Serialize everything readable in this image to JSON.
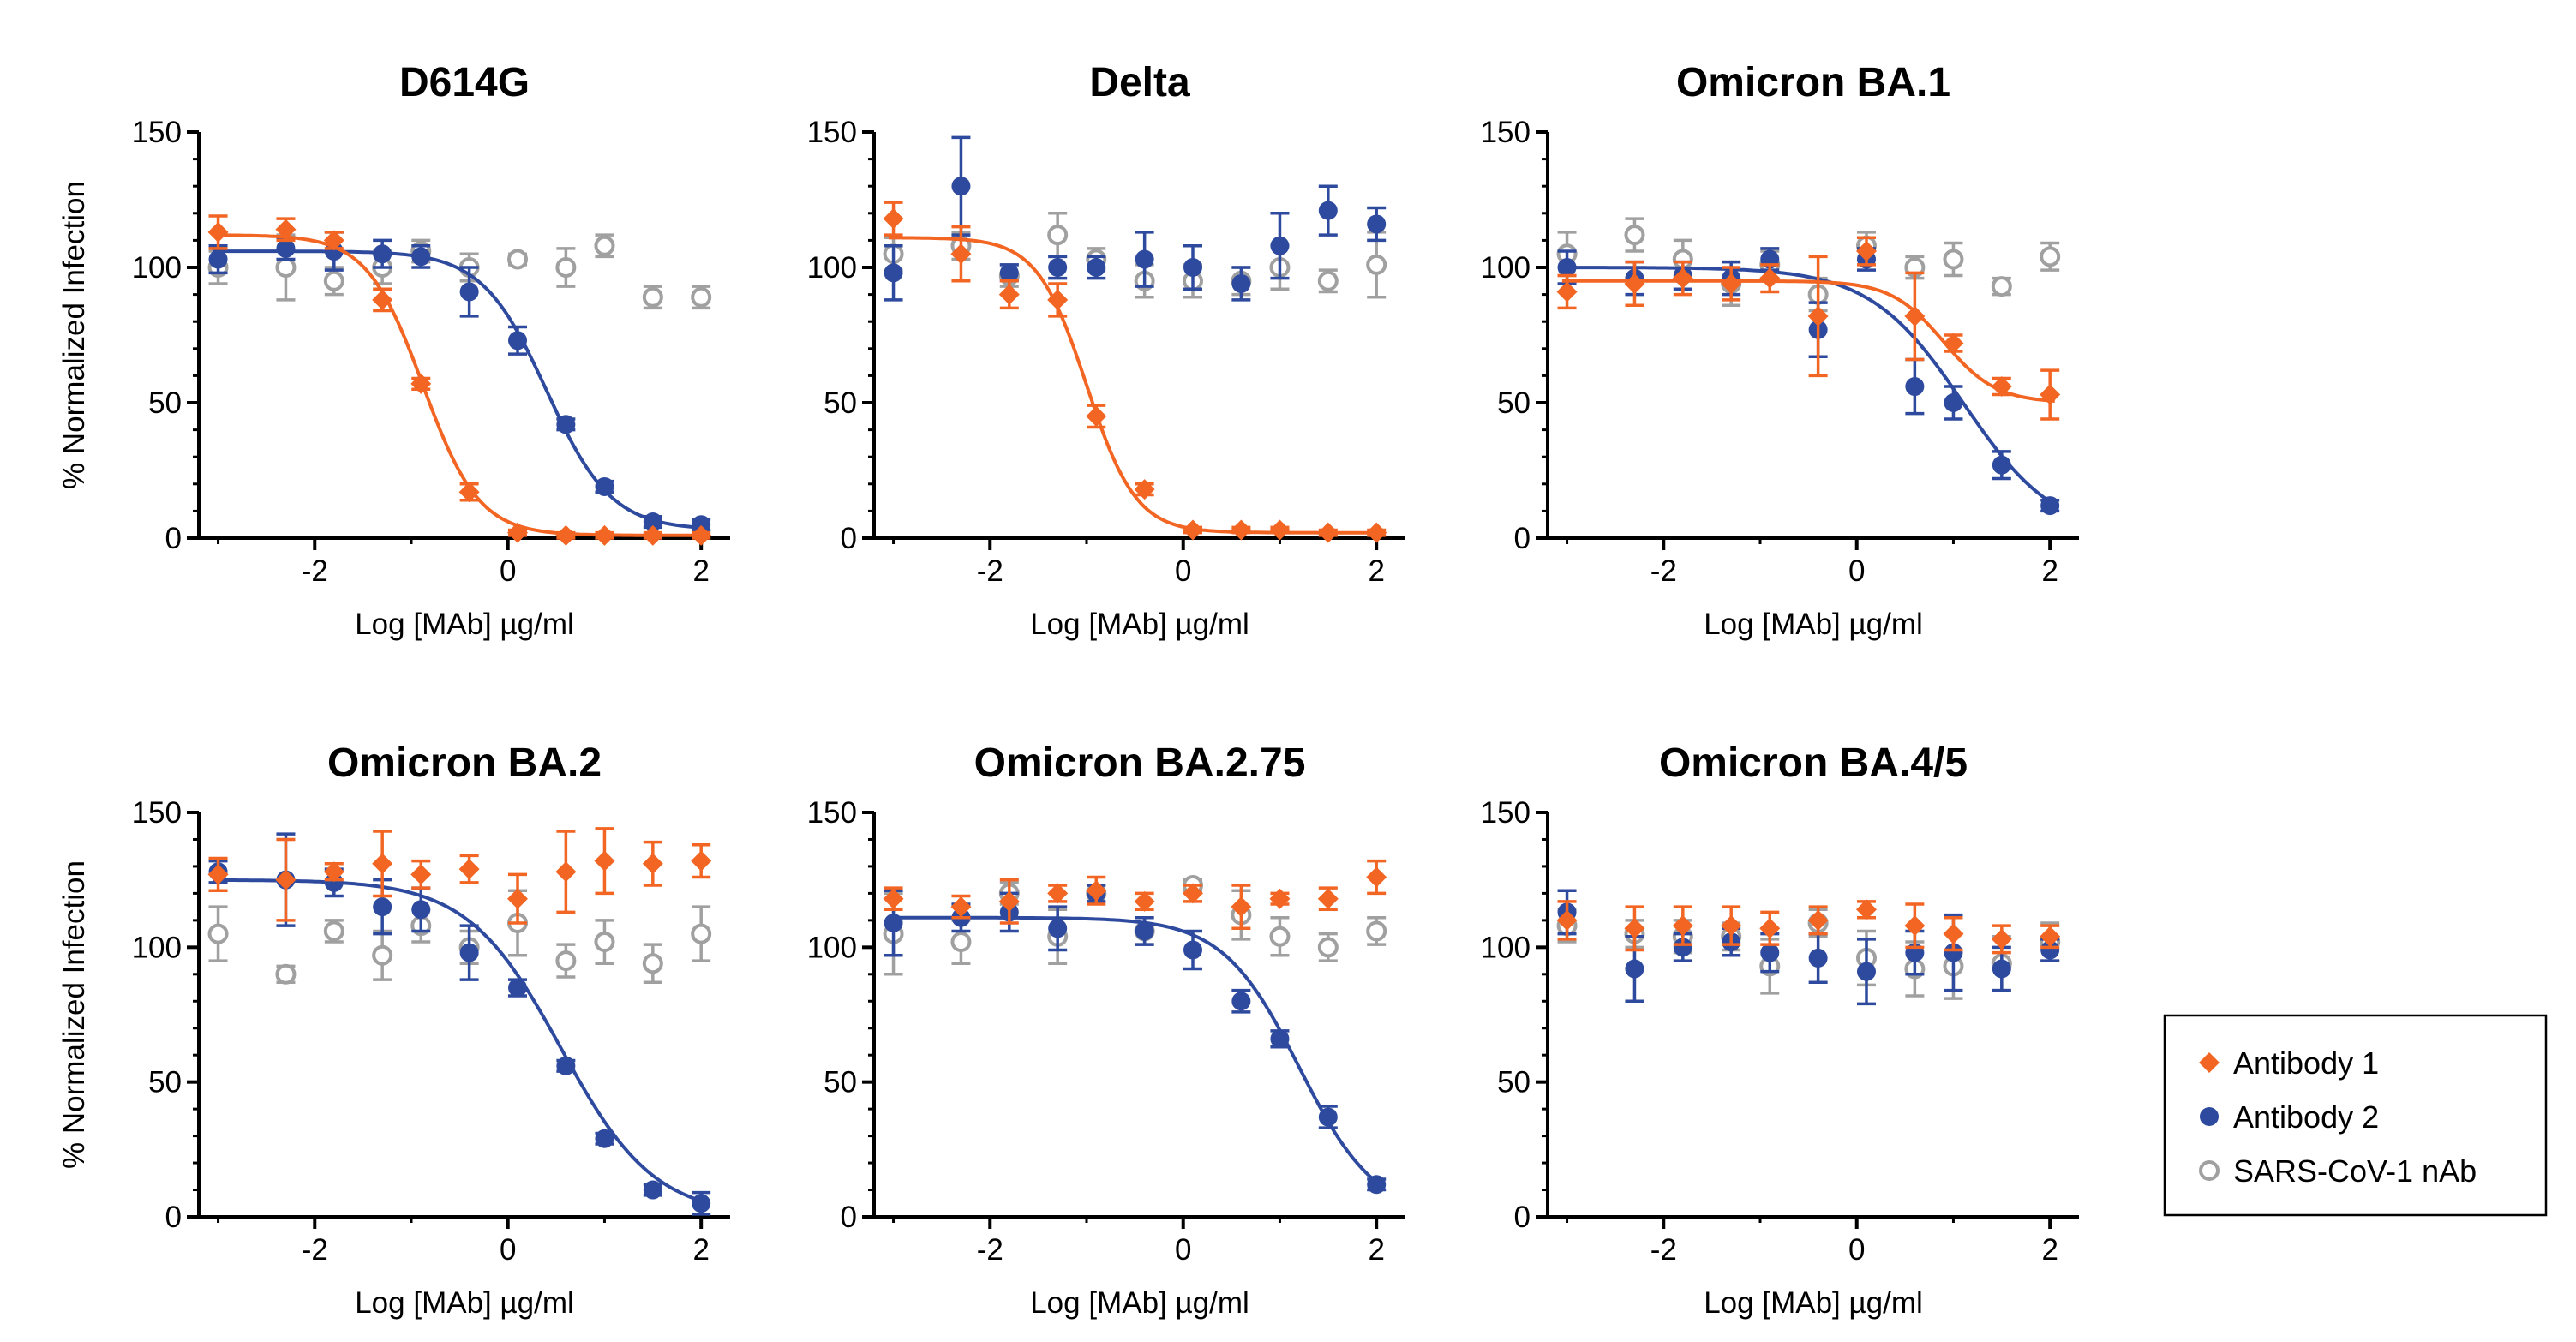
{
  "legend": {
    "entries": [
      {
        "label": "Antibody 1",
        "marker": "diamond",
        "color": "#F26522"
      },
      {
        "label": "Antibody 2",
        "marker": "circle",
        "color": "#2E4A9E"
      },
      {
        "label": "SARS-CoV-1 nAb",
        "marker": "open-circle",
        "color": "#A0A0A0"
      }
    ],
    "placement": "right"
  },
  "chart_data": [
    {
      "type": "scatter",
      "title": "D614G",
      "xlabel": "Log [MAb] µg/ml",
      "ylabel": "% Normalized Infection",
      "xlim": [
        -3.2,
        2.3
      ],
      "ylim": [
        0,
        150
      ],
      "xticks": [
        -2,
        0,
        2
      ],
      "yticks": [
        0,
        50,
        100,
        150
      ],
      "series": [
        {
          "name": "Antibody 1",
          "color": "#F26522",
          "marker": "diamond",
          "x": [
            -3,
            -2.3,
            -1.8,
            -1.3,
            -0.9,
            -0.4,
            0.1,
            0.6,
            1.0,
            1.5,
            2.0
          ],
          "y": [
            113,
            114,
            110,
            88,
            57,
            17,
            2,
            1,
            1,
            1,
            1
          ],
          "err": [
            6,
            4,
            3,
            4,
            2,
            3,
            1,
            1,
            1,
            1,
            1
          ],
          "fit": {
            "top": 112,
            "bottom": 1,
            "logic50": -0.88,
            "hill": 1.5
          }
        },
        {
          "name": "Antibody 2",
          "color": "#2E4A9E",
          "marker": "circle",
          "x": [
            -3,
            -2.3,
            -1.8,
            -1.3,
            -0.9,
            -0.4,
            0.1,
            0.6,
            1.0,
            1.5,
            2.0
          ],
          "y": [
            103,
            107,
            106,
            105,
            104,
            91,
            73,
            42,
            19,
            6,
            5
          ],
          "err": [
            5,
            4,
            7,
            5,
            4,
            9,
            5,
            2,
            2,
            2,
            2
          ],
          "fit": {
            "top": 106,
            "bottom": 3,
            "logic50": 0.4,
            "hill": 1.3
          }
        },
        {
          "name": "SARS-CoV-1 nAb",
          "color": "#A0A0A0",
          "marker": "open-circle",
          "x": [
            -3,
            -2.3,
            -1.8,
            -1.3,
            -0.9,
            -0.4,
            0.1,
            0.6,
            1.0,
            1.5,
            2.0
          ],
          "y": [
            100,
            100,
            95,
            100,
            106,
            100,
            103,
            100,
            108,
            89,
            89
          ],
          "err": [
            6,
            12,
            5,
            6,
            4,
            5,
            2,
            7,
            4,
            4,
            4
          ]
        }
      ]
    },
    {
      "type": "scatter",
      "title": "Delta",
      "xlabel": "Log [MAb] µg/ml",
      "ylabel": "",
      "xlim": [
        -3.2,
        2.3
      ],
      "ylim": [
        0,
        150
      ],
      "xticks": [
        -2,
        0,
        2
      ],
      "yticks": [
        0,
        50,
        100,
        150
      ],
      "series": [
        {
          "name": "Antibody 1",
          "color": "#F26522",
          "marker": "diamond",
          "x": [
            -3,
            -2.3,
            -1.8,
            -1.3,
            -0.9,
            -0.4,
            0.1,
            0.6,
            1.0,
            1.5,
            2.0
          ],
          "y": [
            118,
            105,
            90,
            88,
            45,
            18,
            3,
            3,
            3,
            2,
            2
          ],
          "err": [
            6,
            10,
            5,
            6,
            4,
            2,
            1,
            1,
            1,
            1,
            1
          ],
          "fit": {
            "top": 111,
            "bottom": 2,
            "logic50": -1.0,
            "hill": 1.7
          }
        },
        {
          "name": "Antibody 2",
          "color": "#2E4A9E",
          "marker": "circle",
          "x": [
            -3,
            -2.3,
            -1.8,
            -1.3,
            -0.9,
            -0.4,
            0.1,
            0.6,
            1.0,
            1.5,
            2.0
          ],
          "y": [
            98,
            130,
            98,
            100,
            100,
            103,
            100,
            94,
            108,
            121,
            116
          ],
          "err": [
            10,
            18,
            3,
            4,
            4,
            10,
            8,
            6,
            12,
            9,
            6
          ]
        },
        {
          "name": "SARS-CoV-1 nAb",
          "color": "#A0A0A0",
          "marker": "open-circle",
          "x": [
            -3,
            -2.3,
            -1.8,
            -1.3,
            -0.9,
            -0.4,
            0.1,
            0.6,
            1.0,
            1.5,
            2.0
          ],
          "y": [
            105,
            108,
            97,
            112,
            103,
            95,
            95,
            95,
            100,
            95,
            101
          ],
          "err": [
            6,
            5,
            4,
            8,
            4,
            6,
            6,
            5,
            8,
            4,
            12
          ]
        }
      ]
    },
    {
      "type": "scatter",
      "title": "Omicron BA.1",
      "xlabel": "Log [MAb] µg/ml",
      "ylabel": "",
      "xlim": [
        -3.2,
        2.3
      ],
      "ylim": [
        0,
        150
      ],
      "xticks": [
        -2,
        0,
        2
      ],
      "yticks": [
        0,
        50,
        100,
        150
      ],
      "series": [
        {
          "name": "Antibody 1",
          "color": "#F26522",
          "marker": "diamond",
          "x": [
            -3,
            -2.3,
            -1.8,
            -1.3,
            -0.9,
            -0.4,
            0.1,
            0.6,
            1.0,
            1.5,
            2.0
          ],
          "y": [
            91,
            94,
            96,
            94,
            96,
            82,
            106,
            82,
            72,
            56,
            53
          ],
          "err": [
            6,
            8,
            6,
            6,
            5,
            22,
            5,
            16,
            3,
            3,
            9
          ],
          "fit": {
            "top": 95,
            "bottom": 50,
            "logic50": 0.9,
            "hill": 1.6
          }
        },
        {
          "name": "Antibody 2",
          "color": "#2E4A9E",
          "marker": "circle",
          "x": [
            -3,
            -2.3,
            -1.8,
            -1.3,
            -0.9,
            -0.4,
            0.1,
            0.6,
            1.0,
            1.5,
            2.0
          ],
          "y": [
            100,
            96,
            97,
            96,
            103,
            77,
            103,
            56,
            50,
            27,
            12
          ],
          "err": [
            6,
            6,
            5,
            6,
            4,
            10,
            4,
            10,
            6,
            5,
            2
          ],
          "fit": {
            "top": 100,
            "bottom": 0,
            "logic50": 1.1,
            "hill": 0.9
          }
        },
        {
          "name": "SARS-CoV-1 nAb",
          "color": "#A0A0A0",
          "marker": "open-circle",
          "x": [
            -3,
            -2.3,
            -1.8,
            -1.3,
            -0.9,
            -0.4,
            0.1,
            0.6,
            1.0,
            1.5,
            2.0
          ],
          "y": [
            105,
            112,
            103,
            94,
            101,
            90,
            108,
            100,
            103,
            93,
            104
          ],
          "err": [
            8,
            6,
            7,
            8,
            5,
            6,
            5,
            4,
            6,
            3,
            5
          ]
        }
      ]
    },
    {
      "type": "scatter",
      "title": "Omicron BA.2",
      "xlabel": "Log [MAb] µg/ml",
      "ylabel": "% Normalized Infection",
      "xlim": [
        -3.2,
        2.3
      ],
      "ylim": [
        0,
        150
      ],
      "xticks": [
        -2,
        0,
        2
      ],
      "yticks": [
        0,
        50,
        100,
        150
      ],
      "series": [
        {
          "name": "Antibody 1",
          "color": "#F26522",
          "marker": "diamond",
          "x": [
            -3,
            -2.3,
            -1.8,
            -1.3,
            -0.9,
            -0.4,
            0.1,
            0.6,
            1.0,
            1.5,
            2.0
          ],
          "y": [
            127,
            125,
            128,
            131,
            127,
            129,
            118,
            128,
            132,
            131,
            132
          ],
          "err": [
            6,
            15,
            3,
            12,
            5,
            5,
            9,
            15,
            12,
            8,
            6
          ]
        },
        {
          "name": "Antibody 2",
          "color": "#2E4A9E",
          "marker": "circle",
          "x": [
            -3,
            -2.3,
            -1.8,
            -1.3,
            -0.9,
            -0.4,
            0.1,
            0.6,
            1.0,
            1.5,
            2.0
          ],
          "y": [
            128,
            125,
            124,
            115,
            114,
            98,
            85,
            56,
            29,
            10,
            5
          ],
          "err": [
            4,
            17,
            5,
            10,
            8,
            10,
            3,
            2,
            2,
            2,
            4
          ],
          "fit": {
            "top": 125,
            "bottom": 0,
            "logic50": 0.55,
            "hill": 0.9
          }
        },
        {
          "name": "SARS-CoV-1 nAb",
          "color": "#A0A0A0",
          "marker": "open-circle",
          "x": [
            -3,
            -2.3,
            -1.8,
            -1.3,
            -0.9,
            -0.4,
            0.1,
            0.6,
            1.0,
            1.5,
            2.0
          ],
          "y": [
            105,
            90,
            106,
            97,
            108,
            100,
            109,
            95,
            102,
            94,
            105
          ],
          "err": [
            10,
            3,
            4,
            9,
            6,
            6,
            12,
            6,
            8,
            7,
            10
          ]
        }
      ]
    },
    {
      "type": "scatter",
      "title": "Omicron BA.2.75",
      "xlabel": "Log [MAb] µg/ml",
      "ylabel": "",
      "xlim": [
        -3.2,
        2.3
      ],
      "ylim": [
        0,
        150
      ],
      "xticks": [
        -2,
        0,
        2
      ],
      "yticks": [
        0,
        50,
        100,
        150
      ],
      "series": [
        {
          "name": "Antibody 1",
          "color": "#F26522",
          "marker": "diamond",
          "x": [
            -3,
            -2.3,
            -1.8,
            -1.3,
            -0.9,
            -0.4,
            0.1,
            0.6,
            1.0,
            1.5,
            2.0
          ],
          "y": [
            118,
            115,
            117,
            120,
            121,
            117,
            120,
            115,
            118,
            118,
            126
          ],
          "err": [
            4,
            4,
            8,
            3,
            5,
            3,
            3,
            8,
            2,
            4,
            6
          ]
        },
        {
          "name": "Antibody 2",
          "color": "#2E4A9E",
          "marker": "circle",
          "x": [
            -3,
            -2.3,
            -1.8,
            -1.3,
            -0.9,
            -0.4,
            0.1,
            0.6,
            1.0,
            1.5,
            2.0
          ],
          "y": [
            109,
            111,
            113,
            107,
            120,
            106,
            99,
            80,
            66,
            37,
            12
          ],
          "err": [
            12,
            5,
            7,
            8,
            3,
            5,
            7,
            4,
            3,
            4,
            2
          ],
          "fit": {
            "top": 111,
            "bottom": 0,
            "logic50": 1.2,
            "hill": 1.1
          }
        },
        {
          "name": "SARS-CoV-1 nAb",
          "color": "#A0A0A0",
          "marker": "open-circle",
          "x": [
            -3,
            -2.3,
            -1.8,
            -1.3,
            -0.9,
            -0.4,
            0.1,
            0.6,
            1.0,
            1.5,
            2.0
          ],
          "y": [
            105,
            102,
            120,
            104,
            120,
            106,
            123,
            112,
            104,
            100,
            106
          ],
          "err": [
            15,
            8,
            4,
            10,
            3,
            5,
            2,
            9,
            7,
            5,
            5
          ]
        }
      ]
    },
    {
      "type": "scatter",
      "title": "Omicron BA.4/5",
      "xlabel": "Log [MAb] µg/ml",
      "ylabel": "",
      "xlim": [
        -3.2,
        2.3
      ],
      "ylim": [
        0,
        150
      ],
      "xticks": [
        -2,
        0,
        2
      ],
      "yticks": [
        0,
        50,
        100,
        150
      ],
      "series": [
        {
          "name": "Antibody 1",
          "color": "#F26522",
          "marker": "diamond",
          "x": [
            -3,
            -2.3,
            -1.8,
            -1.3,
            -0.9,
            -0.4,
            0.1,
            0.6,
            1.0,
            1.5,
            2.0
          ],
          "y": [
            110,
            107,
            108,
            108,
            107,
            110,
            114,
            108,
            105,
            103,
            104
          ],
          "err": [
            7,
            8,
            7,
            7,
            6,
            5,
            3,
            8,
            6,
            5,
            4
          ]
        },
        {
          "name": "Antibody 2",
          "color": "#2E4A9E",
          "marker": "circle",
          "x": [
            -3,
            -2.3,
            -1.8,
            -1.3,
            -0.9,
            -0.4,
            0.1,
            0.6,
            1.0,
            1.5,
            2.0
          ],
          "y": [
            113,
            92,
            100,
            102,
            98,
            96,
            91,
            98,
            98,
            92,
            99
          ],
          "err": [
            8,
            12,
            5,
            5,
            7,
            9,
            12,
            8,
            14,
            8,
            4
          ]
        },
        {
          "name": "SARS-CoV-1 nAb",
          "color": "#A0A0A0",
          "marker": "open-circle",
          "x": [
            -3,
            -2.3,
            -1.8,
            -1.3,
            -0.9,
            -0.4,
            0.1,
            0.6,
            1.0,
            1.5,
            2.0
          ],
          "y": [
            108,
            105,
            104,
            104,
            93,
            109,
            96,
            92,
            93,
            94,
            102
          ],
          "err": [
            6,
            5,
            6,
            5,
            10,
            5,
            10,
            10,
            12,
            10,
            7
          ]
        }
      ]
    }
  ]
}
